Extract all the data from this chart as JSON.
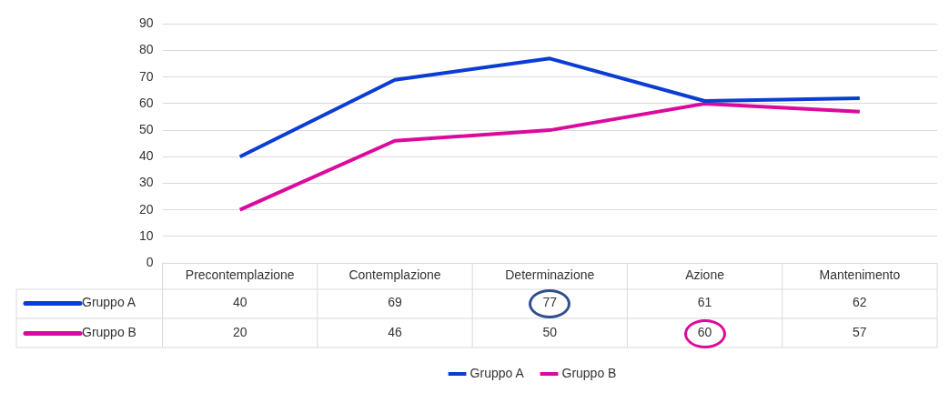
{
  "chart_data": {
    "type": "line",
    "categories": [
      "Precontemplazione",
      "Contemplazione",
      "Determinazione",
      "Azione",
      "Mantenimento"
    ],
    "series": [
      {
        "name": "Gruppo A",
        "color": "#0b3cd4",
        "values": [
          40,
          69,
          77,
          61,
          62
        ]
      },
      {
        "name": "Gruppo B",
        "color": "#dc0a9c",
        "values": [
          20,
          46,
          50,
          60,
          57
        ]
      }
    ],
    "ylim": [
      0,
      90
    ],
    "yticks": [
      0,
      10,
      20,
      30,
      40,
      50,
      60,
      70,
      80,
      90
    ],
    "grid": "y",
    "legend": "bottom",
    "marker": "none",
    "line_style": "solid",
    "data_labels": true
  }
}
